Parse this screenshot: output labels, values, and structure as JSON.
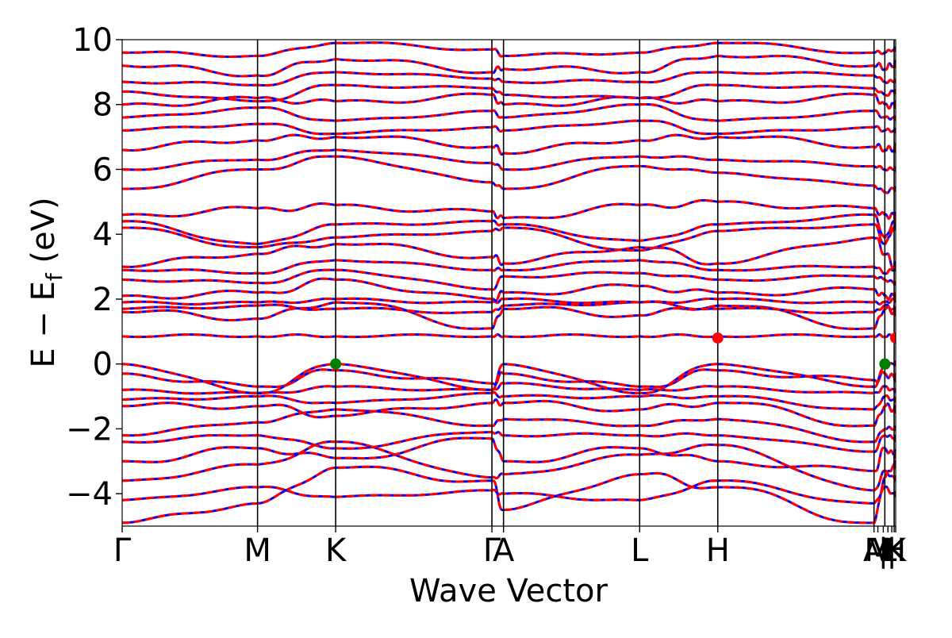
{
  "chart_data": {
    "type": "line",
    "title": "",
    "xlabel": "Wave Vector",
    "ylabel_main": "E − E",
    "ylabel_sub": "f",
    "ylabel_unit": " (eV)",
    "ylim": [
      -5,
      10
    ],
    "xlim": [
      0,
      1
    ],
    "yticks": [
      -4,
      -2,
      0,
      2,
      4,
      6,
      8,
      10
    ],
    "ytick_labels": [
      "−4",
      "−2",
      "0",
      "2",
      "4",
      "6",
      "8",
      "10"
    ],
    "kpoints": [
      {
        "label": "Γ",
        "x": 0.0
      },
      {
        "label": "M",
        "x": 0.175
      },
      {
        "label": "K",
        "x": 0.276
      },
      {
        "label": "Γ",
        "x": 0.478
      },
      {
        "label": "A",
        "x": 0.493
      },
      {
        "label": "L",
        "x": 0.669
      },
      {
        "label": "H",
        "x": 0.77
      },
      {
        "label": "A",
        "x": 0.972
      },
      {
        "label": "M",
        "x": 0.977
      },
      {
        "label": "|",
        "x": 0.984
      },
      {
        "label": "L",
        "x": 0.99
      },
      {
        "label": "|",
        "x": 0.995
      },
      {
        "label": "H",
        "x": 0.998
      },
      {
        "label": "K",
        "x": 1.0
      }
    ],
    "segment_boundaries": [
      0.175,
      0.276,
      0.478,
      0.493,
      0.669,
      0.77,
      0.972,
      0.986,
      0.998
    ],
    "series": [
      {
        "name": "",
        "color": "#0000ff",
        "style": "solid"
      },
      {
        "name": "",
        "color": "#ff0000",
        "style": "dashed"
      }
    ],
    "vbm_points": [
      {
        "x": 0.276,
        "y": 0.0
      },
      {
        "x": 0.986,
        "y": 0.0
      }
    ],
    "vbm_color": "#008000",
    "cbm_points": [
      {
        "x": 0.77,
        "y": 0.8
      },
      {
        "x": 1.0,
        "y": 0.8
      }
    ],
    "cbm_color": "#ff0000",
    "bands": [
      [
        -4.9,
        -4.3,
        -3.2,
        -3.6,
        -4.5,
        -3.4,
        -3.8,
        -4.9,
        -3.5,
        -3.1
      ],
      [
        -4.2,
        -3.8,
        -4.1,
        -3.9,
        -4.0,
        -4.2,
        -3.6,
        -4.3,
        -3.8,
        -4.0
      ],
      [
        -3.6,
        -3.1,
        -2.4,
        -3.5,
        -3.4,
        -2.8,
        -2.5,
        -3.9,
        -3.3,
        -3.5
      ],
      [
        -3.0,
        -2.6,
        -2.9,
        -2.3,
        -3.0,
        -2.6,
        -3.0,
        -3.3,
        -2.6,
        -2.8
      ],
      [
        -2.4,
        -2.2,
        -2.6,
        -2.1,
        -2.2,
        -2.2,
        -2.2,
        -2.7,
        -2.2,
        -2.3
      ],
      [
        -2.2,
        -1.8,
        -1.4,
        -1.9,
        -1.7,
        -1.9,
        -1.7,
        -2.4,
        -2.0,
        -2.0
      ],
      [
        -1.3,
        -1.3,
        -1.6,
        -1.2,
        -1.2,
        -1.4,
        -1.2,
        -1.9,
        -1.3,
        -1.4
      ],
      [
        -1.1,
        -1.0,
        -1.2,
        -0.9,
        -1.0,
        -1.0,
        -1.0,
        -1.4,
        -1.0,
        -1.1
      ],
      [
        -0.8,
        -0.9,
        -0.7,
        -0.8,
        -0.6,
        -0.8,
        -0.7,
        -0.9,
        -0.7,
        -0.8
      ],
      [
        -0.3,
        -0.7,
        -0.2,
        -0.6,
        -0.3,
        -0.7,
        -0.2,
        -0.5,
        -0.3,
        -0.4
      ],
      [
        0.0,
        -0.9,
        0.0,
        -0.8,
        0.0,
        -0.9,
        0.0,
        -0.7,
        -0.1,
        0.0
      ],
      [
        0.85,
        0.85,
        0.85,
        0.85,
        0.85,
        0.85,
        0.85,
        0.85,
        0.85,
        0.85
      ],
      [
        1.6,
        1.4,
        1.9,
        1.1,
        1.7,
        1.5,
        1.8,
        1.1,
        1.7,
        1.6
      ],
      [
        1.7,
        1.8,
        1.7,
        1.6,
        1.8,
        1.9,
        1.7,
        1.6,
        1.8,
        1.7
      ],
      [
        1.9,
        1.9,
        2.0,
        1.9,
        2.0,
        1.9,
        2.0,
        1.9,
        1.9,
        2.0
      ],
      [
        2.1,
        2.2,
        2.6,
        2.0,
        2.2,
        2.4,
        2.2,
        2.3,
        2.1,
        2.1
      ],
      [
        2.6,
        2.5,
        2.9,
        2.3,
        2.7,
        2.8,
        2.6,
        2.7,
        2.6,
        2.5
      ],
      [
        2.9,
        2.8,
        3.2,
        2.9,
        2.9,
        3.2,
        2.9,
        3.0,
        2.8,
        2.9
      ],
      [
        3.0,
        3.4,
        3.7,
        3.3,
        3.1,
        3.6,
        3.1,
        3.9,
        3.4,
        3.0
      ],
      [
        4.2,
        3.6,
        3.9,
        4.1,
        4.2,
        3.5,
        4.1,
        4.3,
        3.7,
        4.2
      ],
      [
        4.4,
        3.7,
        4.3,
        4.4,
        4.3,
        3.8,
        4.3,
        4.6,
        3.9,
        4.4
      ],
      [
        4.6,
        4.8,
        4.9,
        4.7,
        4.5,
        4.9,
        5.0,
        4.8,
        4.6,
        4.6
      ],
      [
        5.4,
        6.0,
        6.4,
        5.6,
        5.4,
        6.1,
        5.9,
        5.5,
        5.3,
        5.4
      ],
      [
        6.0,
        6.3,
        6.6,
        6.2,
        6.0,
        6.4,
        6.3,
        6.1,
        6.0,
        6.0
      ],
      [
        6.6,
        6.9,
        7.0,
        6.7,
        6.5,
        6.9,
        7.0,
        6.7,
        6.6,
        6.6
      ],
      [
        7.2,
        7.4,
        7.1,
        7.3,
        7.2,
        7.5,
        7.1,
        7.3,
        7.2,
        7.2
      ],
      [
        7.6,
        7.9,
        7.5,
        7.8,
        7.6,
        8.0,
        7.5,
        7.8,
        7.6,
        7.6
      ],
      [
        8.0,
        8.2,
        8.1,
        8.3,
        8.0,
        8.2,
        8.1,
        8.3,
        8.0,
        8.0
      ],
      [
        8.4,
        8.1,
        8.6,
        8.5,
        8.3,
        8.2,
        8.6,
        8.5,
        8.3,
        8.4
      ],
      [
        8.7,
        8.6,
        9.0,
        8.8,
        8.7,
        8.7,
        9.0,
        8.9,
        8.7,
        8.7
      ],
      [
        9.2,
        8.9,
        9.4,
        9.0,
        9.1,
        9.0,
        9.5,
        9.2,
        9.1,
        9.2
      ],
      [
        9.6,
        9.5,
        9.9,
        9.7,
        9.5,
        9.6,
        9.9,
        9.6,
        9.6,
        9.7
      ]
    ]
  }
}
